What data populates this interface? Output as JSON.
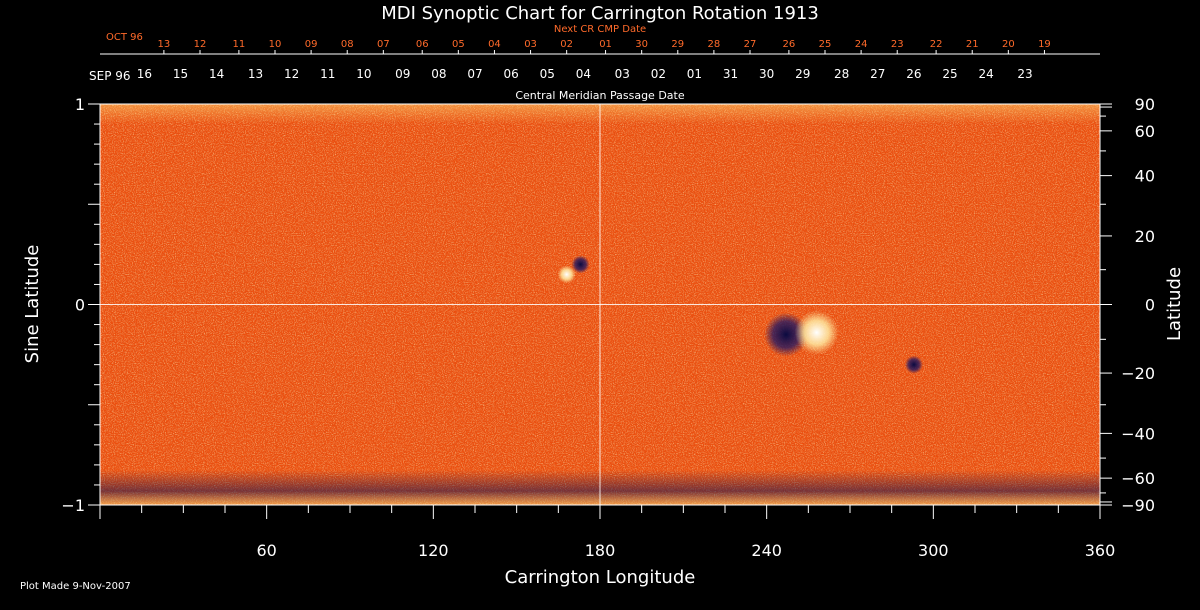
{
  "colors": {
    "background": "#000000",
    "axis": "#ffffff",
    "next_cr_dates": "#ff6a2a",
    "field_base": "#ff5a10",
    "field_bright": "#ffe27a",
    "field_dark": "#1a1450"
  },
  "chart_data": {
    "type": "heatmap",
    "title": "MDI Synoptic Chart for Carrington Rotation 1913",
    "xlabel": "Carrington Longitude",
    "ylabel_left": "Sine Latitude",
    "ylabel_right": "Latitude",
    "xlim": [
      0,
      360
    ],
    "ylim": [
      -1,
      1
    ],
    "x_ticks": [
      60,
      120,
      180,
      240,
      300,
      360
    ],
    "y_ticks_left": [
      "1",
      "0",
      "−1"
    ],
    "y_ticks_left_values": [
      1,
      0,
      -1
    ],
    "y_ticks_right": [
      {
        "label": "90",
        "lat": 90
      },
      {
        "label": "60",
        "lat": 60
      },
      {
        "label": "40",
        "lat": 40
      },
      {
        "label": "20",
        "lat": 20
      },
      {
        "label": "0",
        "lat": 0
      },
      {
        "label": "−20",
        "lat": -20
      },
      {
        "label": "−40",
        "lat": -40
      },
      {
        "label": "−60",
        "lat": -60
      },
      {
        "label": "−90",
        "lat": -90
      }
    ],
    "cmp_axis_label": "Central Meridian Passage Date",
    "cmp_month_label": "SEP 96",
    "cmp_dates": [
      {
        "label": "16",
        "lon": 16
      },
      {
        "label": "15",
        "lon": 29
      },
      {
        "label": "14",
        "lon": 42
      },
      {
        "label": "13",
        "lon": 56
      },
      {
        "label": "12",
        "lon": 69
      },
      {
        "label": "11",
        "lon": 82
      },
      {
        "label": "10",
        "lon": 95
      },
      {
        "label": "09",
        "lon": 109
      },
      {
        "label": "08",
        "lon": 122
      },
      {
        "label": "07",
        "lon": 135
      },
      {
        "label": "06",
        "lon": 148
      },
      {
        "label": "05",
        "lon": 161
      },
      {
        "label": "04",
        "lon": 174
      },
      {
        "label": "03",
        "lon": 188
      },
      {
        "label": "02",
        "lon": 201
      },
      {
        "label": "01",
        "lon": 214
      },
      {
        "label": "31",
        "lon": 227
      },
      {
        "label": "30",
        "lon": 240
      },
      {
        "label": "29",
        "lon": 253
      },
      {
        "label": "28",
        "lon": 267
      },
      {
        "label": "27",
        "lon": 280
      },
      {
        "label": "26",
        "lon": 293
      },
      {
        "label": "25",
        "lon": 306
      },
      {
        "label": "24",
        "lon": 319
      },
      {
        "label": "23",
        "lon": 333
      }
    ],
    "next_cr_label": "Next CR CMP Date",
    "next_cr_month_label": "OCT 96",
    "next_cr_dates": [
      {
        "label": "13",
        "lon": 23
      },
      {
        "label": "12",
        "lon": 36
      },
      {
        "label": "11",
        "lon": 50
      },
      {
        "label": "10",
        "lon": 63
      },
      {
        "label": "09",
        "lon": 76
      },
      {
        "label": "08",
        "lon": 89
      },
      {
        "label": "07",
        "lon": 102
      },
      {
        "label": "06",
        "lon": 116
      },
      {
        "label": "05",
        "lon": 129
      },
      {
        "label": "04",
        "lon": 142
      },
      {
        "label": "03",
        "lon": 155
      },
      {
        "label": "02",
        "lon": 168
      },
      {
        "label": "01",
        "lon": 182
      },
      {
        "label": "30",
        "lon": 195
      },
      {
        "label": "29",
        "lon": 208
      },
      {
        "label": "28",
        "lon": 221
      },
      {
        "label": "27",
        "lon": 234
      },
      {
        "label": "26",
        "lon": 248
      },
      {
        "label": "25",
        "lon": 261
      },
      {
        "label": "24",
        "lon": 274
      },
      {
        "label": "23",
        "lon": 287
      },
      {
        "label": "22",
        "lon": 301
      },
      {
        "label": "21",
        "lon": 314
      },
      {
        "label": "20",
        "lon": 327
      },
      {
        "label": "19",
        "lon": 340
      }
    ],
    "grid_lines": {
      "lon": 180,
      "sinlat": 0
    },
    "features": [
      {
        "name": "active-region-negative",
        "lon": 247,
        "sinlat": -0.15,
        "polarity": "negative"
      },
      {
        "name": "active-region-positive",
        "lon": 258,
        "sinlat": -0.14,
        "polarity": "positive"
      },
      {
        "name": "spot-mid-north",
        "lon": 173,
        "sinlat": 0.2,
        "polarity": "negative"
      },
      {
        "name": "spot-mid-north-bright",
        "lon": 168,
        "sinlat": 0.15,
        "polarity": "positive"
      },
      {
        "name": "spot-south-east",
        "lon": 293,
        "sinlat": -0.3,
        "polarity": "negative"
      }
    ]
  },
  "footer": {
    "plot_made": "Plot Made  9-Nov-2007"
  }
}
